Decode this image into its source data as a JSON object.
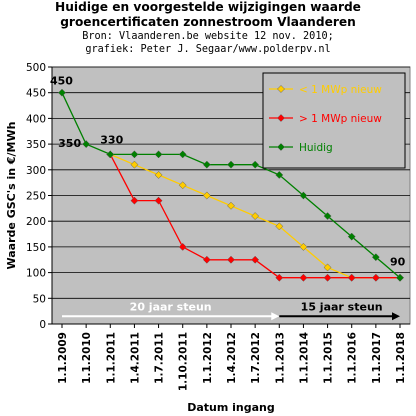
{
  "header": {
    "title_line1": "Huidige en voorgestelde wijzigingen waarde",
    "title_line2": "groencertificaten zonnestroom Vlaanderen",
    "source_line1": "Bron: Vlaanderen.be website 12 nov. 2010;",
    "source_line2": "grafiek: Peter J. Segaar/www.polderpv.nl"
  },
  "chart_data": {
    "type": "line",
    "xlabel": "Datum ingang",
    "ylabel": "Waarde GSC's in €/MWh",
    "ylim": [
      0,
      500
    ],
    "yticks": [
      0,
      50,
      100,
      150,
      200,
      250,
      300,
      350,
      400,
      450,
      500
    ],
    "grid": true,
    "legend_position": "top-right",
    "x_ticks": [
      {
        "label": "1.1.2009",
        "x": 2009.0
      },
      {
        "label": "1.1.2010",
        "x": 2010.0
      },
      {
        "label": "1.1.2011",
        "x": 2011.0
      },
      {
        "label": "1.4.2011",
        "x": 2011.25
      },
      {
        "label": "1.7.2011",
        "x": 2011.5
      },
      {
        "label": "1.10.2011",
        "x": 2011.75
      },
      {
        "label": "1.1.2012",
        "x": 2012.0
      },
      {
        "label": "1.4.2012",
        "x": 2012.25
      },
      {
        "label": "1.7.2012",
        "x": 2012.5
      },
      {
        "label": "1.1.2013",
        "x": 2013.0
      },
      {
        "label": "1.1.2014",
        "x": 2014.0
      },
      {
        "label": "1.1.2015",
        "x": 2015.0
      },
      {
        "label": "1.1.2016",
        "x": 2016.0
      },
      {
        "label": "1.1.2017",
        "x": 2017.0
      },
      {
        "label": "1.1.2018",
        "x": 2018.0
      }
    ],
    "series": [
      {
        "name": "< 1 MWp nieuw",
        "color": "#FFCC00",
        "points": [
          [
            2011.0,
            330
          ],
          [
            2011.25,
            310
          ],
          [
            2011.5,
            290
          ],
          [
            2011.75,
            270
          ],
          [
            2012.0,
            250
          ],
          [
            2012.25,
            230
          ],
          [
            2012.5,
            210
          ],
          [
            2013.0,
            190
          ],
          [
            2014.0,
            150
          ],
          [
            2015.0,
            110
          ],
          [
            2016.0,
            90
          ],
          [
            2017.0,
            90
          ],
          [
            2018.0,
            90
          ]
        ]
      },
      {
        "name": "> 1 MWp nieuw",
        "color": "#FF0000",
        "points": [
          [
            2011.0,
            330
          ],
          [
            2011.25,
            240
          ],
          [
            2011.5,
            240
          ],
          [
            2011.75,
            150
          ],
          [
            2012.0,
            125
          ],
          [
            2012.25,
            125
          ],
          [
            2012.5,
            125
          ],
          [
            2013.0,
            90
          ],
          [
            2014.0,
            90
          ],
          [
            2015.0,
            90
          ],
          [
            2016.0,
            90
          ],
          [
            2017.0,
            90
          ],
          [
            2018.0,
            90
          ]
        ]
      },
      {
        "name": "Huidig",
        "color": "#008000",
        "points": [
          [
            2009.0,
            450
          ],
          [
            2010.0,
            350
          ],
          [
            2011.0,
            330
          ],
          [
            2011.25,
            330
          ],
          [
            2011.5,
            330
          ],
          [
            2011.75,
            330
          ],
          [
            2012.0,
            310
          ],
          [
            2012.25,
            310
          ],
          [
            2012.5,
            310
          ],
          [
            2013.0,
            290
          ],
          [
            2014.0,
            250
          ],
          [
            2015.0,
            210
          ],
          [
            2016.0,
            170
          ],
          [
            2017.0,
            130
          ],
          [
            2018.0,
            90
          ]
        ]
      }
    ],
    "annotations": [
      {
        "text": "450",
        "x": 2009.0,
        "y": 450
      },
      {
        "text": "350",
        "x": 2010.0,
        "y": 350
      },
      {
        "text": "330",
        "x": 2011.0,
        "y": 330
      },
      {
        "text": "90",
        "x": 2018.0,
        "y": 90
      }
    ],
    "arrows": [
      {
        "text": "20 jaar steun",
        "x_from": 2009.0,
        "x_to": 2013.0,
        "y": 15,
        "color": "#FFFFFF"
      },
      {
        "text": "15 jaar steun",
        "x_from": 2013.0,
        "x_to": 2018.0,
        "y": 15,
        "color": "#000000"
      }
    ]
  },
  "colors": {
    "plot_background": "#C0C0C0",
    "legend_background": "#C0C0C0",
    "grid": "#000000"
  }
}
